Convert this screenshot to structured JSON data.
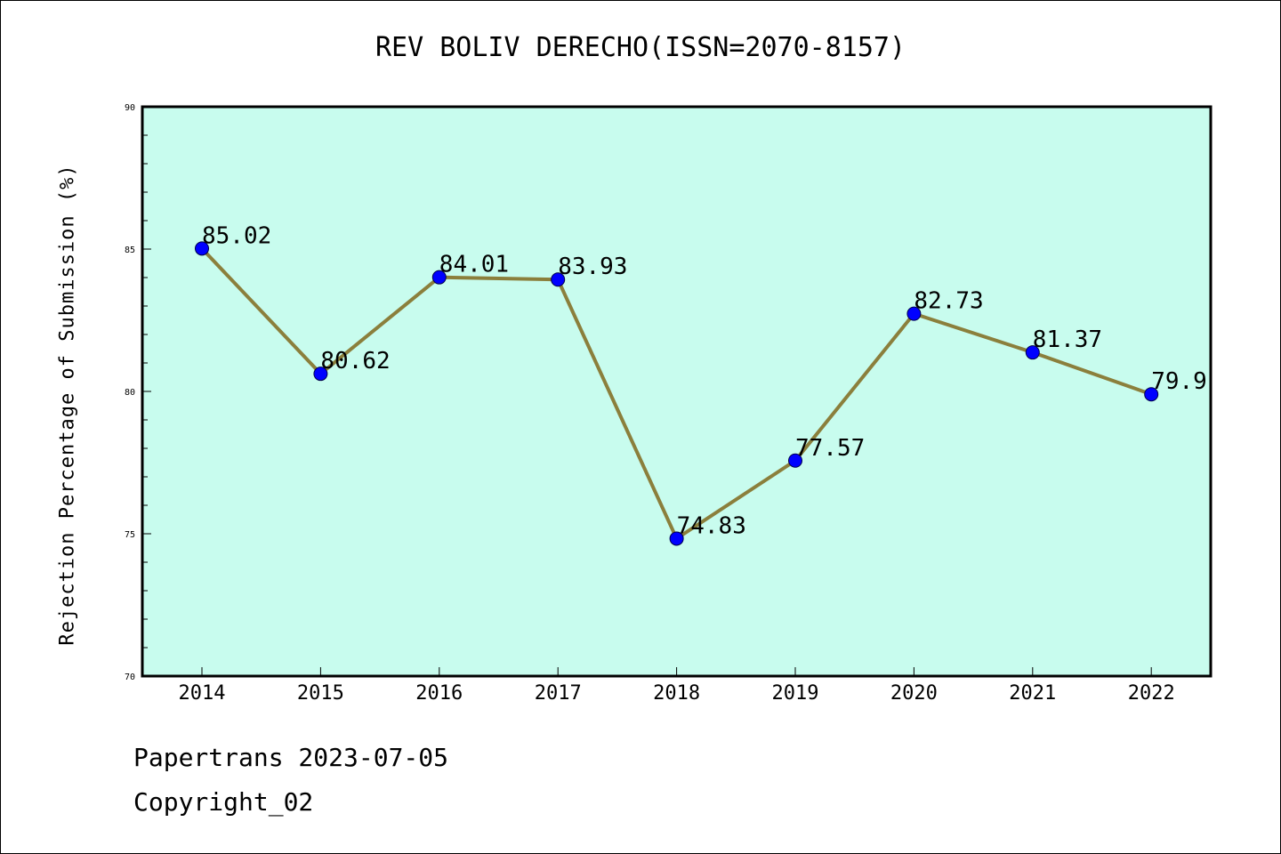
{
  "chart_data": {
    "type": "line",
    "title": "REV BOLIV DERECHO(ISSN=2070-8157)",
    "xlabel": "",
    "ylabel": "Rejection Percentage of Submission (%)",
    "categories": [
      "2014",
      "2015",
      "2016",
      "2017",
      "2018",
      "2019",
      "2020",
      "2021",
      "2022"
    ],
    "series": [
      {
        "values": [
          85.02,
          80.62,
          84.01,
          83.93,
          74.83,
          77.57,
          82.73,
          81.37,
          79.9
        ],
        "labels": [
          "85.02",
          "80.62",
          "84.01",
          "83.93",
          "74.83",
          "77.57",
          "82.73",
          "81.37",
          "79.9"
        ]
      }
    ],
    "ylim": [
      70,
      90
    ],
    "yticks": [
      "70",
      "75",
      "80",
      "85",
      "90"
    ],
    "grid": false,
    "colors": {
      "plot_background": "#c8fcee",
      "line": "#8b7f3c",
      "marker": "#0000ff"
    }
  },
  "footer": {
    "line1": "Papertrans 2023-07-05",
    "line2": "Copyright_02"
  }
}
